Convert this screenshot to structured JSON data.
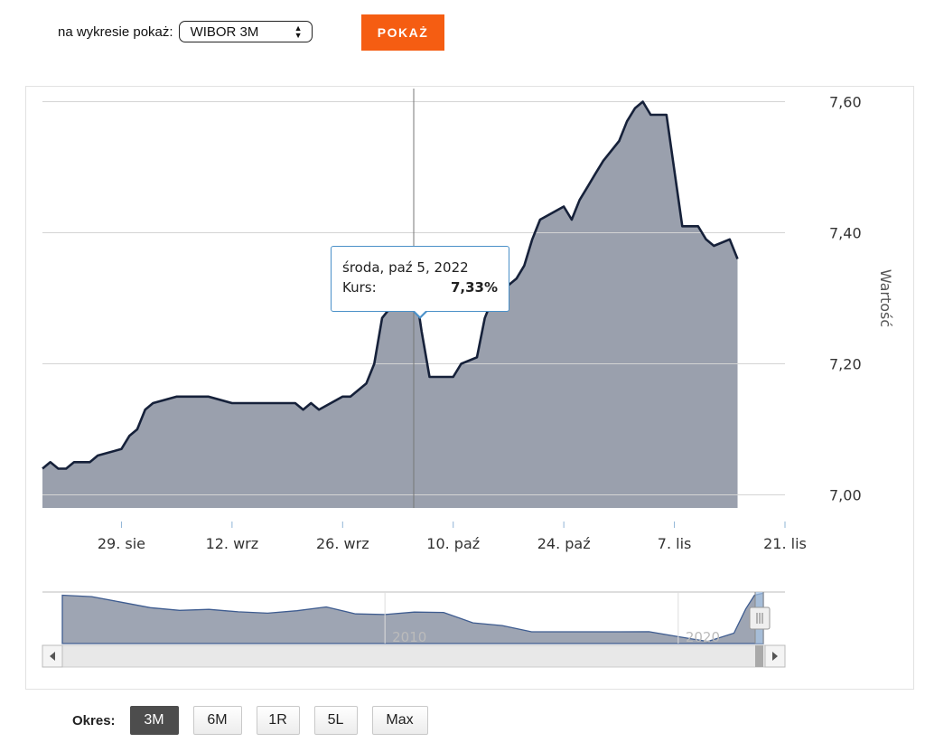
{
  "selector": {
    "label": "na wykresie pokaż:",
    "selected": "WIBOR 3M"
  },
  "show_button": "POKAŻ",
  "tooltip": {
    "date": "środa, paź 5, 2022",
    "label": "Kurs:",
    "value": "7,33%"
  },
  "period": {
    "label": "Okres:",
    "options": [
      "3M",
      "6M",
      "1R",
      "5L",
      "Max"
    ],
    "active": "3M"
  },
  "colors": {
    "area": "#9aa0ad",
    "line": "#16213a",
    "accent": "#f55d12",
    "tooltip_border": "#4a90c8"
  },
  "chart_data": {
    "type": "area",
    "ylabel": "Wartość",
    "ylim": [
      6.98,
      7.62
    ],
    "yticks": [
      7.0,
      7.2,
      7.4,
      7.6
    ],
    "ytick_labels": [
      "7,00",
      "7,20",
      "7,40",
      "7,60"
    ],
    "xlim": [
      "2022-08-19",
      "2022-11-21"
    ],
    "xticks": [
      "2022-08-29",
      "2022-09-12",
      "2022-09-26",
      "2022-10-10",
      "2022-10-24",
      "2022-11-07",
      "2022-11-21"
    ],
    "xtick_labels": [
      "29. sie",
      "12. wrz",
      "26. wrz",
      "10. paź",
      "24. paź",
      "7. lis",
      "21. lis"
    ],
    "highlight": {
      "x": "2022-10-05",
      "y": 7.33
    },
    "series": [
      {
        "points": [
          [
            "2022-08-19",
            7.04
          ],
          [
            "2022-08-20",
            7.05
          ],
          [
            "2022-08-21",
            7.04
          ],
          [
            "2022-08-22",
            7.04
          ],
          [
            "2022-08-23",
            7.05
          ],
          [
            "2022-08-25",
            7.05
          ],
          [
            "2022-08-26",
            7.06
          ],
          [
            "2022-08-29",
            7.07
          ],
          [
            "2022-08-30",
            7.09
          ],
          [
            "2022-08-31",
            7.1
          ],
          [
            "2022-09-01",
            7.13
          ],
          [
            "2022-09-02",
            7.14
          ],
          [
            "2022-09-05",
            7.15
          ],
          [
            "2022-09-09",
            7.15
          ],
          [
            "2022-09-12",
            7.14
          ],
          [
            "2022-09-20",
            7.14
          ],
          [
            "2022-09-21",
            7.13
          ],
          [
            "2022-09-22",
            7.14
          ],
          [
            "2022-09-23",
            7.13
          ],
          [
            "2022-09-26",
            7.15
          ],
          [
            "2022-09-27",
            7.15
          ],
          [
            "2022-09-29",
            7.17
          ],
          [
            "2022-09-30",
            7.2
          ],
          [
            "2022-10-01",
            7.27
          ],
          [
            "2022-10-03",
            7.3
          ],
          [
            "2022-10-05",
            7.33
          ],
          [
            "2022-10-06",
            7.25
          ],
          [
            "2022-10-07",
            7.18
          ],
          [
            "2022-10-10",
            7.18
          ],
          [
            "2022-10-11",
            7.2
          ],
          [
            "2022-10-13",
            7.21
          ],
          [
            "2022-10-14",
            7.27
          ],
          [
            "2022-10-15",
            7.3
          ],
          [
            "2022-10-17",
            7.32
          ],
          [
            "2022-10-18",
            7.33
          ],
          [
            "2022-10-19",
            7.35
          ],
          [
            "2022-10-20",
            7.39
          ],
          [
            "2022-10-21",
            7.42
          ],
          [
            "2022-10-24",
            7.44
          ],
          [
            "2022-10-25",
            7.42
          ],
          [
            "2022-10-26",
            7.45
          ],
          [
            "2022-10-27",
            7.47
          ],
          [
            "2022-10-28",
            7.49
          ],
          [
            "2022-10-29",
            7.51
          ],
          [
            "2022-10-31",
            7.54
          ],
          [
            "2022-11-01",
            7.57
          ],
          [
            "2022-11-02",
            7.59
          ],
          [
            "2022-11-03",
            7.6
          ],
          [
            "2022-11-04",
            7.58
          ],
          [
            "2022-11-06",
            7.58
          ],
          [
            "2022-11-08",
            7.41
          ],
          [
            "2022-11-10",
            7.41
          ],
          [
            "2022-11-11",
            7.39
          ],
          [
            "2022-11-12",
            7.38
          ],
          [
            "2022-11-14",
            7.39
          ],
          [
            "2022-11-15",
            7.36
          ]
        ]
      }
    ]
  },
  "navigator": {
    "labels": [
      "2010",
      "2020"
    ],
    "series": [
      [
        1999,
        7.0
      ],
      [
        2000,
        6.8
      ],
      [
        2001,
        6.0
      ],
      [
        2002,
        5.2
      ],
      [
        2003,
        4.8
      ],
      [
        2004,
        4.95
      ],
      [
        2005,
        4.6
      ],
      [
        2006,
        4.4
      ],
      [
        2007,
        4.75
      ],
      [
        2008,
        5.3
      ],
      [
        2009,
        4.3
      ],
      [
        2010,
        4.2
      ],
      [
        2011,
        4.55
      ],
      [
        2012,
        4.5
      ],
      [
        2013,
        3.0
      ],
      [
        2014,
        2.6
      ],
      [
        2015,
        1.7
      ],
      [
        2016,
        1.7
      ],
      [
        2017,
        1.7
      ],
      [
        2018,
        1.7
      ],
      [
        2019,
        1.72
      ],
      [
        2020,
        1.0
      ],
      [
        2021,
        0.3
      ],
      [
        2021.9,
        1.5
      ],
      [
        2022.3,
        5.0
      ],
      [
        2022.6,
        7.0
      ],
      [
        2022.9,
        7.3
      ]
    ]
  }
}
